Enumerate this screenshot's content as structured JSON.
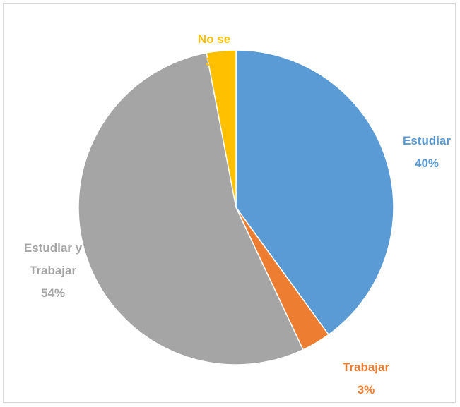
{
  "chart_data": {
    "type": "pie",
    "categories": [
      "Estudiar",
      "Trabajar",
      "Estudiar y Trabajar",
      "No se"
    ],
    "values": [
      40,
      3,
      54,
      3
    ],
    "value_labels": [
      "40%",
      "3%",
      "54%",
      "3%"
    ],
    "colors": [
      "#5b9bd5",
      "#ed7d31",
      "#a5a5a5",
      "#ffc000"
    ]
  }
}
